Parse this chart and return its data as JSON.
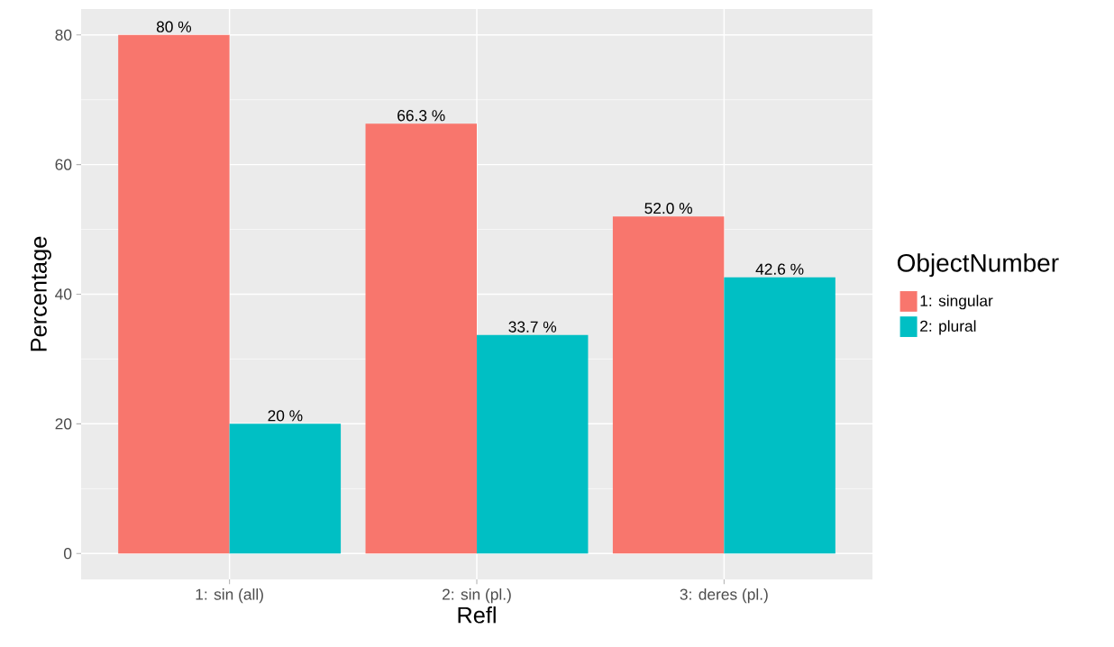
{
  "chart_data": {
    "type": "bar",
    "xlabel": "Refl",
    "ylabel": "Percentage",
    "legend_title": "ObjectNumber",
    "categories": [
      "1: sin (all)",
      "2: sin (pl.)",
      "3: deres (pl.)"
    ],
    "series": [
      {
        "name": "1: singular",
        "color": "#f8766d",
        "values": [
          80,
          66.3,
          52.0
        ],
        "value_labels": [
          "80 %",
          "66.3 %",
          "52.0 %"
        ]
      },
      {
        "name": "2: plural",
        "color": "#00bfc4",
        "values": [
          20,
          33.7,
          42.6
        ],
        "value_labels": [
          "20 %",
          "33.7 %",
          "42.6 %"
        ]
      }
    ],
    "ylim": [
      -4,
      84
    ],
    "yticks": [
      0,
      20,
      40,
      60,
      80
    ],
    "grid": true,
    "legend": "right"
  }
}
